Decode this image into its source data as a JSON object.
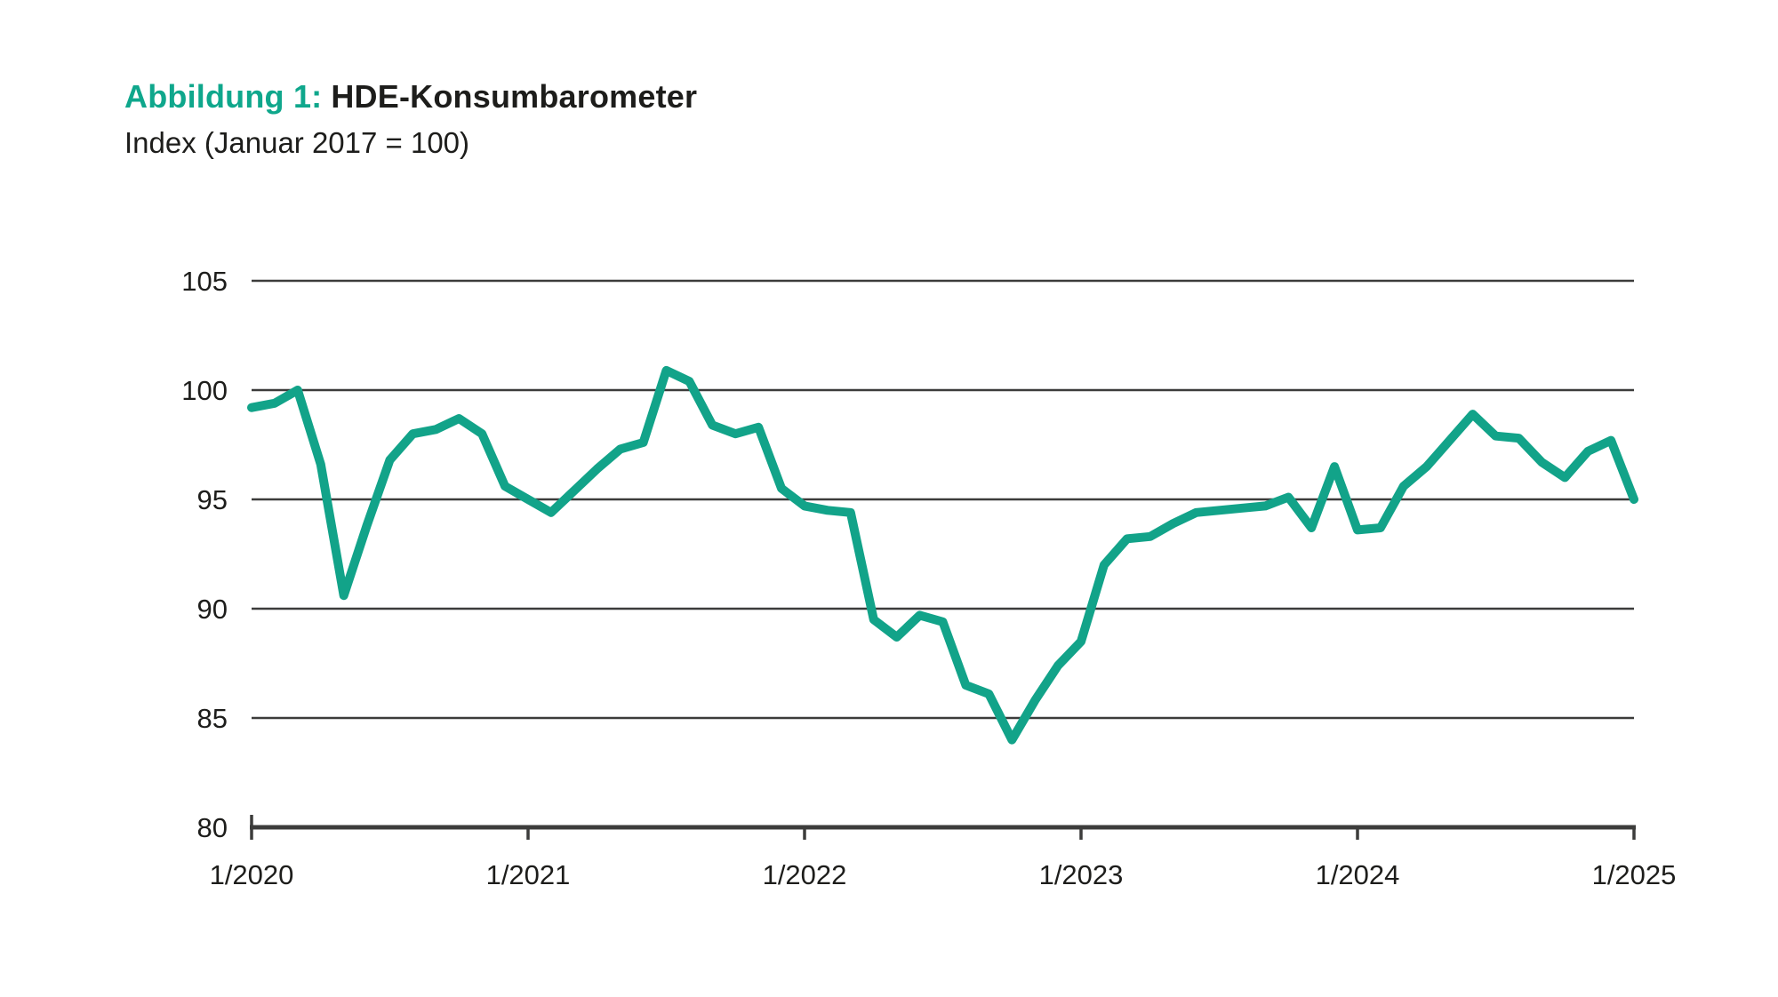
{
  "figure": {
    "label": "Abbildung 1:",
    "title": "HDE-Konsumbarometer",
    "subtitle": "Index (Januar 2017 = 100)"
  },
  "colors": {
    "accent_teal": "#0fa78c",
    "line_teal": "#12a389",
    "axis_dark": "#3c3c3b",
    "text_dark": "#1d1d1b",
    "background": "#ffffff"
  },
  "chart_data": {
    "type": "line",
    "title": "HDE-Konsumbarometer",
    "subtitle": "Index (Januar 2017 = 100)",
    "grid": "horizontal",
    "legend_position": "none",
    "xlabel": "",
    "ylabel": "",
    "ylim": [
      80,
      105
    ],
    "y_ticks": [
      80,
      85,
      90,
      95,
      100,
      105
    ],
    "x_tick_labels": [
      "1/2020",
      "1/2021",
      "1/2022",
      "1/2023",
      "1/2024",
      "1/2025"
    ],
    "x": [
      "1/2020",
      "2/2020",
      "3/2020",
      "4/2020",
      "5/2020",
      "6/2020",
      "7/2020",
      "8/2020",
      "9/2020",
      "10/2020",
      "11/2020",
      "12/2020",
      "1/2021",
      "2/2021",
      "3/2021",
      "4/2021",
      "5/2021",
      "6/2021",
      "7/2021",
      "8/2021",
      "9/2021",
      "10/2021",
      "11/2021",
      "12/2021",
      "1/2022",
      "2/2022",
      "3/2022",
      "4/2022",
      "5/2022",
      "6/2022",
      "7/2022",
      "8/2022",
      "9/2022",
      "10/2022",
      "11/2022",
      "12/2022",
      "1/2023",
      "2/2023",
      "3/2023",
      "4/2023",
      "5/2023",
      "6/2023",
      "7/2023",
      "8/2023",
      "9/2023",
      "10/2023",
      "11/2023",
      "12/2023",
      "1/2024",
      "2/2024",
      "3/2024",
      "4/2024",
      "5/2024",
      "6/2024",
      "7/2024",
      "8/2024",
      "9/2024",
      "10/2024",
      "11/2024",
      "12/2024",
      "1/2025"
    ],
    "series": [
      {
        "name": "HDE-Konsumbarometer",
        "values": [
          99.2,
          99.4,
          100.0,
          96.6,
          90.6,
          93.8,
          96.8,
          98.0,
          98.2,
          98.7,
          98.0,
          95.6,
          95.0,
          94.4,
          95.4,
          96.4,
          97.3,
          97.6,
          100.9,
          100.4,
          98.4,
          98.0,
          98.3,
          95.5,
          94.7,
          94.5,
          94.4,
          89.5,
          88.7,
          89.7,
          89.4,
          86.5,
          86.1,
          84.0,
          85.8,
          87.4,
          88.5,
          92.0,
          93.2,
          93.3,
          93.9,
          94.4,
          94.5,
          94.6,
          94.7,
          95.1,
          93.7,
          96.5,
          93.6,
          93.7,
          95.6,
          96.5,
          97.7,
          98.9,
          97.9,
          97.8,
          96.7,
          96.0,
          97.2,
          97.7,
          95.0
        ]
      }
    ]
  }
}
